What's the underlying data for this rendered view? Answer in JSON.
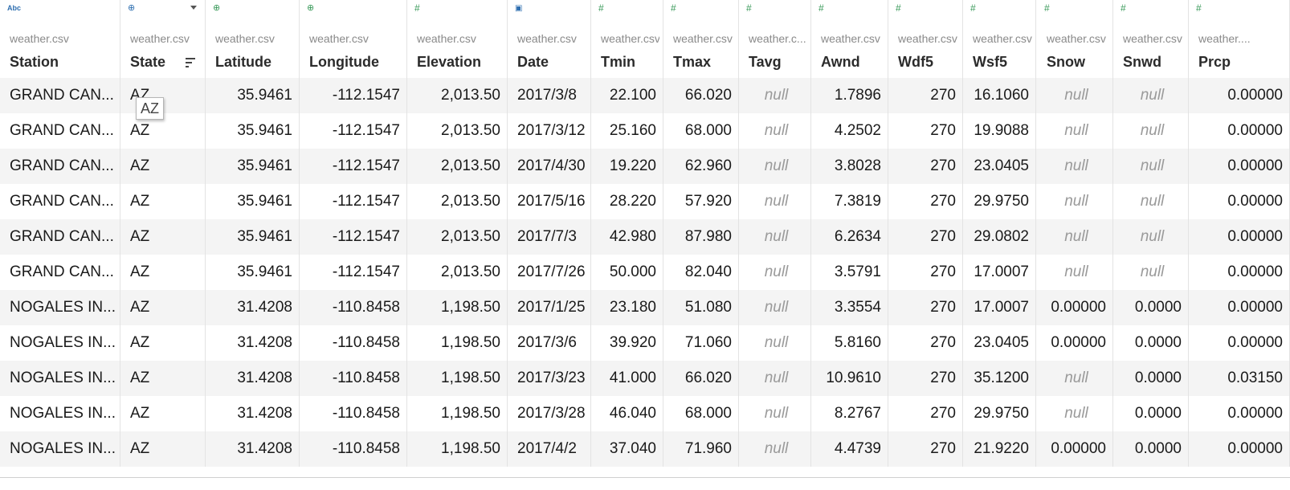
{
  "columns": [
    {
      "id": "station",
      "icon": "string-type-icon",
      "icon_glyph": "Abc",
      "source": "weather.csv",
      "name": "Station",
      "align": "left"
    },
    {
      "id": "state",
      "icon": "geo-globe-icon",
      "icon_glyph": "⊕",
      "source": "weather.csv",
      "name": "State",
      "align": "left",
      "has_menu": true,
      "sorted": true
    },
    {
      "id": "latitude",
      "icon": "geo-globe-icon",
      "icon_glyph": "⊕",
      "source": "weather.csv",
      "name": "Latitude",
      "align": "right"
    },
    {
      "id": "longitude",
      "icon": "geo-globe-icon",
      "icon_glyph": "⊕",
      "source": "weather.csv",
      "name": "Longitude",
      "align": "right"
    },
    {
      "id": "elevation",
      "icon": "number-type-icon",
      "icon_glyph": "#",
      "source": "weather.csv",
      "name": "Elevation",
      "align": "right"
    },
    {
      "id": "date",
      "icon": "date-type-icon",
      "icon_glyph": "▣",
      "source": "weather.csv",
      "name": "Date",
      "align": "left"
    },
    {
      "id": "tmin",
      "icon": "number-type-icon",
      "icon_glyph": "#",
      "source": "weather.csv",
      "name": "Tmin",
      "align": "right"
    },
    {
      "id": "tmax",
      "icon": "number-type-icon",
      "icon_glyph": "#",
      "source": "weather.csv",
      "name": "Tmax",
      "align": "right"
    },
    {
      "id": "tavg",
      "icon": "number-type-icon",
      "icon_glyph": "#",
      "source": "weather.c...",
      "name": "Tavg",
      "align": "right"
    },
    {
      "id": "awnd",
      "icon": "number-type-icon",
      "icon_glyph": "#",
      "source": "weather.csv",
      "name": "Awnd",
      "align": "right"
    },
    {
      "id": "wdf5",
      "icon": "number-type-icon",
      "icon_glyph": "#",
      "source": "weather.csv",
      "name": "Wdf5",
      "align": "right"
    },
    {
      "id": "wsf5",
      "icon": "number-type-icon",
      "icon_glyph": "#",
      "source": "weather.csv",
      "name": "Wsf5",
      "align": "right"
    },
    {
      "id": "snow",
      "icon": "number-type-icon",
      "icon_glyph": "#",
      "source": "weather.csv",
      "name": "Snow",
      "align": "right"
    },
    {
      "id": "snwd",
      "icon": "number-type-icon",
      "icon_glyph": "#",
      "source": "weather.csv",
      "name": "Snwd",
      "align": "right"
    },
    {
      "id": "prcp",
      "icon": "number-type-icon",
      "icon_glyph": "#",
      "source": "weather....",
      "name": "Prcp",
      "align": "right"
    }
  ],
  "null_label": "null",
  "rows": [
    [
      "GRAND CAN...",
      "AZ",
      "35.9461",
      "-112.1547",
      "2,013.50",
      "2017/3/8",
      "22.100",
      "66.020",
      null,
      "1.7896",
      "270",
      "16.1060",
      null,
      null,
      "0.00000"
    ],
    [
      "GRAND CAN...",
      "AZ",
      "35.9461",
      "-112.1547",
      "2,013.50",
      "2017/3/12",
      "25.160",
      "68.000",
      null,
      "4.2502",
      "270",
      "19.9088",
      null,
      null,
      "0.00000"
    ],
    [
      "GRAND CAN...",
      "AZ",
      "35.9461",
      "-112.1547",
      "2,013.50",
      "2017/4/30",
      "19.220",
      "62.960",
      null,
      "3.8028",
      "270",
      "23.0405",
      null,
      null,
      "0.00000"
    ],
    [
      "GRAND CAN...",
      "AZ",
      "35.9461",
      "-112.1547",
      "2,013.50",
      "2017/5/16",
      "28.220",
      "57.920",
      null,
      "7.3819",
      "270",
      "29.9750",
      null,
      null,
      "0.00000"
    ],
    [
      "GRAND CAN...",
      "AZ",
      "35.9461",
      "-112.1547",
      "2,013.50",
      "2017/7/3",
      "42.980",
      "87.980",
      null,
      "6.2634",
      "270",
      "29.0802",
      null,
      null,
      "0.00000"
    ],
    [
      "GRAND CAN...",
      "AZ",
      "35.9461",
      "-112.1547",
      "2,013.50",
      "2017/7/26",
      "50.000",
      "82.040",
      null,
      "3.5791",
      "270",
      "17.0007",
      null,
      null,
      "0.00000"
    ],
    [
      "NOGALES IN...",
      "AZ",
      "31.4208",
      "-110.8458",
      "1,198.50",
      "2017/1/25",
      "23.180",
      "51.080",
      null,
      "3.3554",
      "270",
      "17.0007",
      "0.00000",
      "0.0000",
      "0.00000"
    ],
    [
      "NOGALES IN...",
      "AZ",
      "31.4208",
      "-110.8458",
      "1,198.50",
      "2017/3/6",
      "39.920",
      "71.060",
      null,
      "5.8160",
      "270",
      "23.0405",
      "0.00000",
      "0.0000",
      "0.00000"
    ],
    [
      "NOGALES IN...",
      "AZ",
      "31.4208",
      "-110.8458",
      "1,198.50",
      "2017/3/23",
      "41.000",
      "66.020",
      null,
      "10.9610",
      "270",
      "35.1200",
      null,
      "0.0000",
      "0.03150"
    ],
    [
      "NOGALES IN...",
      "AZ",
      "31.4208",
      "-110.8458",
      "1,198.50",
      "2017/3/28",
      "46.040",
      "68.000",
      null,
      "8.2767",
      "270",
      "29.9750",
      null,
      "0.0000",
      "0.00000"
    ],
    [
      "NOGALES IN...",
      "AZ",
      "31.4208",
      "-110.8458",
      "1,198.50",
      "2017/4/2",
      "37.040",
      "71.960",
      null,
      "4.4739",
      "270",
      "21.9220",
      "0.00000",
      "0.0000",
      "0.00000"
    ]
  ],
  "tooltip": {
    "text": "AZ"
  }
}
